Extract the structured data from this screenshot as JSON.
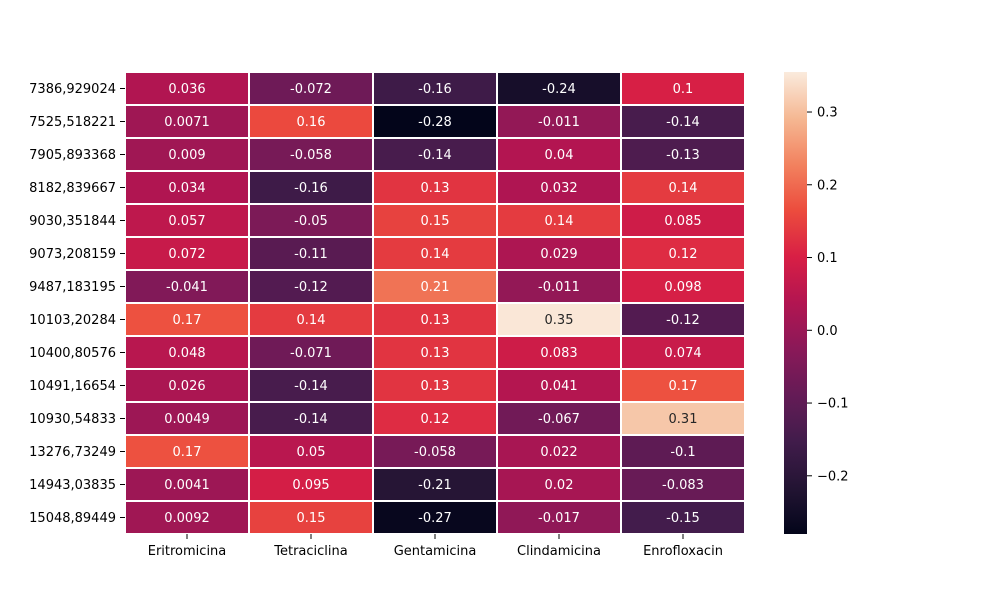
{
  "chart_data": {
    "type": "heatmap",
    "title": "",
    "xlabel": "",
    "ylabel": "",
    "columns": [
      "Eritromicina",
      "Tetraciclina",
      "Gentamicina",
      "Clindamicina",
      "Enrofloxacin"
    ],
    "rows": [
      "7386,929024",
      "7525,518221",
      "7905,893368",
      "8182,839667",
      "9030,351844",
      "9073,208159",
      "9487,183195",
      "10103,20284",
      "10400,80576",
      "10491,16654",
      "10930,54833",
      "13276,73249",
      "14943,03835",
      "15048,89449"
    ],
    "values": [
      [
        0.036,
        -0.072,
        -0.16,
        -0.24,
        0.1
      ],
      [
        0.0071,
        0.16,
        -0.28,
        -0.011,
        -0.14
      ],
      [
        0.009,
        -0.058,
        -0.14,
        0.04,
        -0.13
      ],
      [
        0.034,
        -0.16,
        0.13,
        0.032,
        0.14
      ],
      [
        0.057,
        -0.05,
        0.15,
        0.14,
        0.085
      ],
      [
        0.072,
        -0.11,
        0.14,
        0.029,
        0.12
      ],
      [
        -0.041,
        -0.12,
        0.21,
        -0.011,
        0.098
      ],
      [
        0.17,
        0.14,
        0.13,
        0.35,
        -0.12
      ],
      [
        0.048,
        -0.071,
        0.13,
        0.083,
        0.074
      ],
      [
        0.026,
        -0.14,
        0.13,
        0.041,
        0.17
      ],
      [
        0.0049,
        -0.14,
        0.12,
        -0.067,
        0.31
      ],
      [
        0.17,
        0.05,
        -0.058,
        0.022,
        -0.1
      ],
      [
        0.0041,
        0.095,
        -0.21,
        0.02,
        -0.083
      ],
      [
        0.0092,
        0.15,
        -0.27,
        -0.017,
        -0.15
      ]
    ],
    "colorbar": {
      "min": -0.28,
      "max": 0.355,
      "ticks": [
        0.3,
        0.2,
        0.1,
        0.0,
        -0.1,
        -0.2
      ],
      "tick_labels": [
        "0.3",
        "0.2",
        "0.1",
        "0.0",
        "−0.1",
        "−0.2"
      ],
      "colormap": "rocket"
    }
  }
}
